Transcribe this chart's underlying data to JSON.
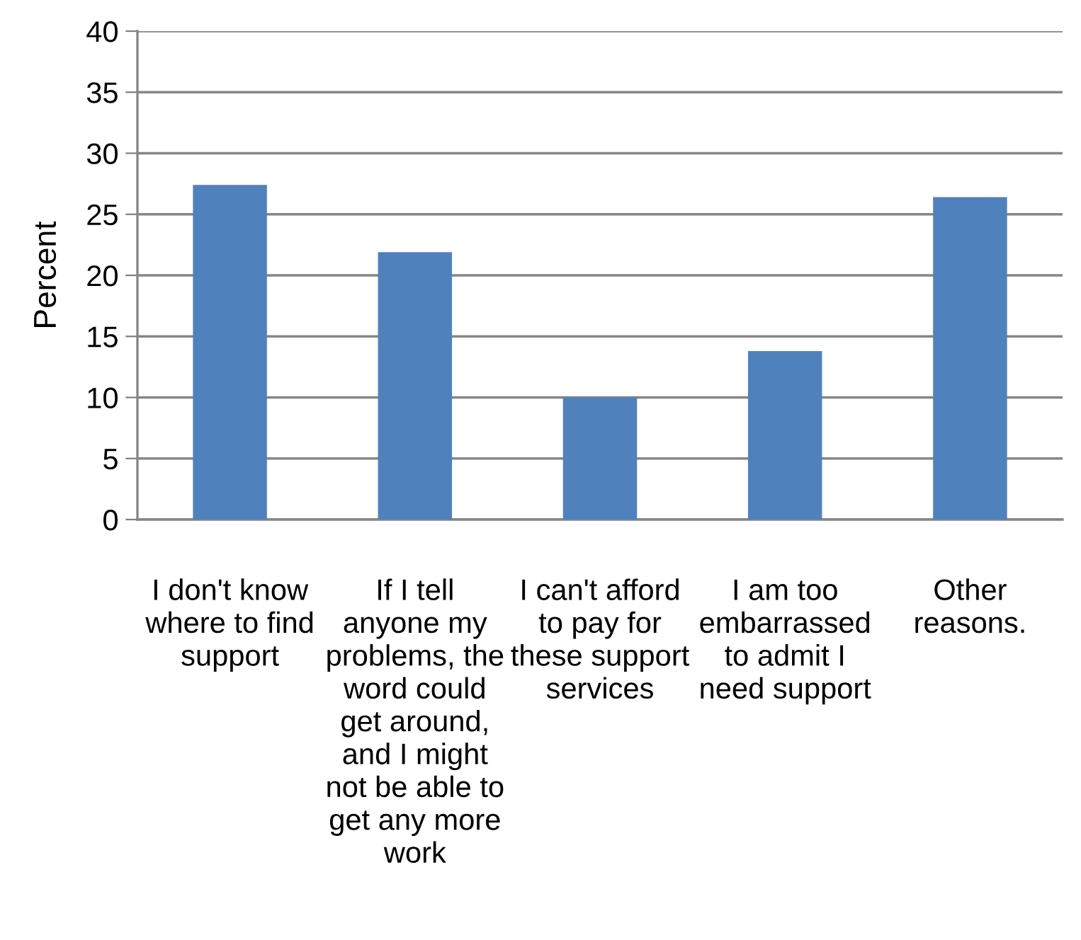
{
  "chart_data": {
    "type": "bar",
    "ylabel": "Percent",
    "categories": [
      "I don't know\nwhere to find\nsupport",
      "If I tell\nanyone my\nproblems, the\nword could\nget around,\nand I might\nnot be able to\nget any more\nwork",
      "I can't afford\nto pay for\nthese support\nservices",
      "I am too\nembarrassed\nto admit I\nneed support",
      "Other\nreasons."
    ],
    "values": [
      27.4,
      21.9,
      10.0,
      13.8,
      26.4
    ],
    "color": "#4f81bd",
    "ylim": [
      0,
      40
    ],
    "yticks": [
      0,
      5,
      10,
      15,
      20,
      25,
      30,
      35,
      40
    ],
    "grid": "y"
  }
}
